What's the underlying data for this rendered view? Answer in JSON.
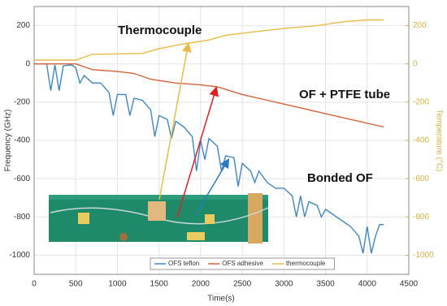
{
  "chart_data": {
    "type": "line",
    "xlabel": "Time(s)",
    "ylabel": "Frequency (GHz)",
    "y2label": "Temperature (°C)",
    "xlim": [
      0,
      4500
    ],
    "xticks": [
      0,
      500,
      1000,
      1500,
      2000,
      2500,
      3000,
      3500,
      4000,
      4500
    ],
    "ylim": [
      -1100,
      300
    ],
    "yticks": [
      -1000,
      -800,
      -600,
      -400,
      -200,
      0,
      200
    ],
    "y2lim": [
      -1100,
      300
    ],
    "y2ticks": [
      -1000,
      -800,
      -600,
      -400,
      -200,
      0,
      200
    ],
    "y2color": "#d8b040",
    "grid": true,
    "legend": "bottom",
    "annotations": [
      "Thermocouple",
      "OF + PTFE tube",
      "Bonded OF"
    ],
    "series": [
      {
        "name": "OFS teflon",
        "color": "#3f86c6",
        "x": [
          0,
          150,
          200,
          250,
          300,
          350,
          450,
          500,
          550,
          600,
          700,
          800,
          900,
          950,
          1000,
          1100,
          1150,
          1200,
          1300,
          1400,
          1450,
          1500,
          1600,
          1650,
          1700,
          1800,
          1900,
          1950,
          2000,
          2050,
          2100,
          2200,
          2250,
          2300,
          2400,
          2450,
          2500,
          2600,
          2650,
          2700,
          2800,
          2900,
          3000,
          3100,
          3150,
          3200,
          3250,
          3300,
          3400,
          3450,
          3500,
          3700,
          3800,
          3900,
          3950,
          4000,
          4050,
          4100,
          4150,
          4200
        ],
        "values": [
          0,
          0,
          -140,
          -5,
          -140,
          -10,
          -5,
          -20,
          -100,
          -60,
          -100,
          -100,
          -150,
          -270,
          -160,
          -160,
          -270,
          -180,
          -190,
          -240,
          -380,
          -270,
          -290,
          -390,
          -300,
          -330,
          -380,
          -560,
          -400,
          -500,
          -390,
          -430,
          -560,
          -480,
          -490,
          -640,
          -520,
          -560,
          -620,
          -560,
          -620,
          -650,
          -650,
          -690,
          -800,
          -690,
          -800,
          -720,
          -740,
          -800,
          -760,
          -820,
          -850,
          -900,
          -990,
          -850,
          -990,
          -900,
          -840,
          -840
        ]
      },
      {
        "name": "OFS adhesive",
        "color": "#d2633a",
        "x": [
          0,
          500,
          700,
          1000,
          1200,
          1400,
          1700,
          2000,
          2200,
          2500,
          2800,
          3000,
          3300,
          3600,
          3900,
          4200
        ],
        "values": [
          0,
          0,
          -30,
          -40,
          -50,
          -80,
          -100,
          -110,
          -120,
          -160,
          -190,
          -210,
          -240,
          -270,
          -300,
          -330
        ]
      },
      {
        "name": "thermocouple",
        "color": "#e9bb45",
        "axis": "y2",
        "x": [
          0,
          500,
          700,
          1300,
          1500,
          1800,
          2100,
          2300,
          2700,
          3000,
          3400,
          3700,
          4000,
          4200
        ],
        "values": [
          20,
          20,
          50,
          55,
          80,
          105,
          125,
          150,
          170,
          185,
          200,
          220,
          230,
          230
        ]
      }
    ]
  }
}
